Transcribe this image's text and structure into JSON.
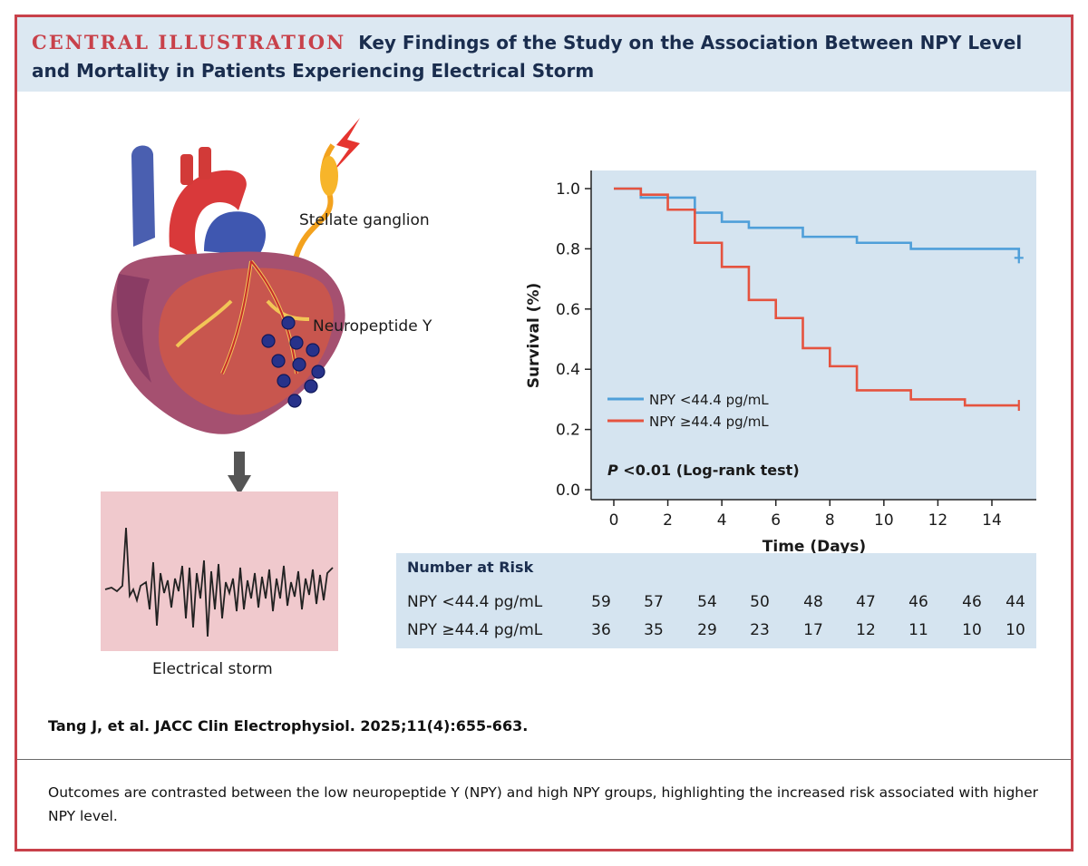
{
  "header": {
    "label": "CENTRAL ILLUSTRATION",
    "title": "Key Findings of the Study on the Association Between NPY Level and Mortality in Patients Experiencing Electrical Storm"
  },
  "illustration": {
    "stellate_label": "Stellate ganglion",
    "npy_label": "Neuropeptide Y",
    "storm_label": "Electrical storm"
  },
  "chart_data": {
    "type": "line",
    "subtype": "kaplan-meier step",
    "xlabel": "Time (Days)",
    "ylabel": "Survival (%)",
    "xlim": [
      -1,
      16
    ],
    "ylim": [
      0,
      1.0
    ],
    "xticks": [
      0,
      2,
      4,
      6,
      8,
      10,
      12,
      14
    ],
    "yticks": [
      0.0,
      0.2,
      0.4,
      0.6,
      0.8,
      1.0
    ],
    "xtick_labels": [
      "0",
      "2",
      "4",
      "6",
      "8",
      "10",
      "12",
      "14"
    ],
    "ytick_labels": [
      "0.0",
      "0.2",
      "0.4",
      "0.6",
      "0.8",
      "1.0"
    ],
    "legend_position": "lower-left",
    "annotation_p": "P",
    "annotation_rest": " <0.01 (Log-rank test)",
    "series": [
      {
        "name": "NPY <44.4 pg/mL",
        "color": "#4f9fd9",
        "x": [
          0,
          1,
          3,
          4,
          5,
          7,
          9,
          11,
          15
        ],
        "y": [
          1.0,
          0.97,
          0.92,
          0.89,
          0.87,
          0.84,
          0.82,
          0.8,
          0.77
        ]
      },
      {
        "name": "NPY ≥44.4 pg/mL",
        "color": "#e5533f",
        "x": [
          0,
          1,
          2,
          3,
          4,
          5,
          6,
          7,
          8,
          9,
          11,
          13,
          15
        ],
        "y": [
          1.0,
          0.98,
          0.93,
          0.82,
          0.74,
          0.63,
          0.57,
          0.47,
          0.41,
          0.33,
          0.3,
          0.28,
          0.28
        ]
      }
    ]
  },
  "risk_table": {
    "title": "Number at Risk",
    "rows": [
      {
        "label": "NPY <44.4 pg/mL",
        "values": [
          "59",
          "57",
          "54",
          "50",
          "48",
          "47",
          "46",
          "46",
          "44"
        ]
      },
      {
        "label": "NPY ≥44.4 pg/mL",
        "values": [
          "36",
          "35",
          "29",
          "23",
          "17",
          "12",
          "11",
          "10",
          "10"
        ]
      }
    ]
  },
  "citation": "Tang J, et al. JACC Clin Electrophysiol. 2025;11(4):655-663.",
  "caption": "Outcomes are contrasted between the low neuropeptide Y (NPY) and high NPY groups, highlighting the increased risk associated with higher NPY level.",
  "colors": {
    "frame": "#c8414a",
    "header_bg": "#dce8f2",
    "plot_bg": "#d5e4f0",
    "storm_bg": "#f0c9cd"
  }
}
